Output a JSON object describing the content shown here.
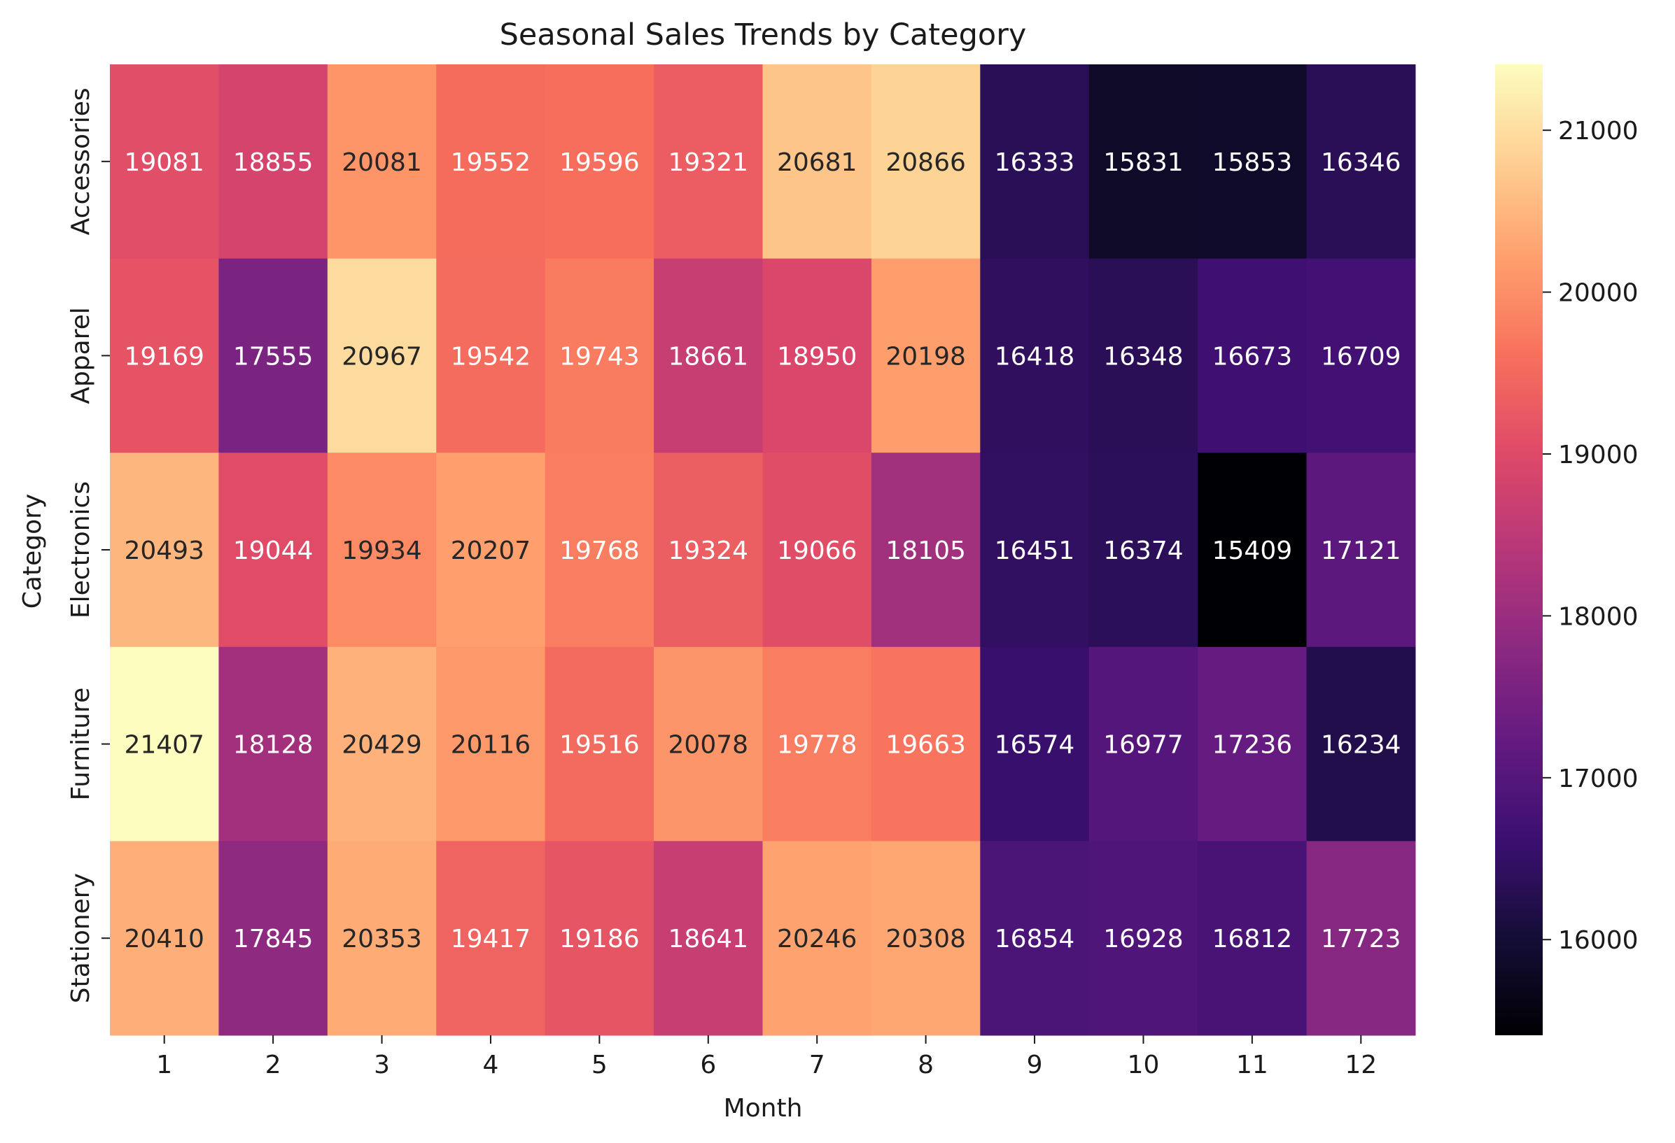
{
  "chart_data": {
    "type": "heatmap",
    "title": "Seasonal Sales Trends by Category",
    "xlabel": "Month",
    "ylabel": "Category",
    "x_categories": [
      "1",
      "2",
      "3",
      "4",
      "5",
      "6",
      "7",
      "8",
      "9",
      "10",
      "11",
      "12"
    ],
    "y_categories": [
      "Accessories",
      "Apparel",
      "Electronics",
      "Furniture",
      "Stationery"
    ],
    "values": [
      [
        19081,
        18855,
        20081,
        19552,
        19596,
        19321,
        20681,
        20866,
        16333,
        15831,
        15853,
        16346
      ],
      [
        19169,
        17555,
        20967,
        19542,
        19743,
        18661,
        18950,
        20198,
        16418,
        16348,
        16673,
        16709
      ],
      [
        20493,
        19044,
        19934,
        20207,
        19768,
        19324,
        19066,
        18105,
        16451,
        16374,
        15409,
        17121
      ],
      [
        21407,
        18128,
        20429,
        20116,
        19516,
        20078,
        19778,
        19663,
        16574,
        16977,
        17236,
        16234
      ],
      [
        20410,
        17845,
        20353,
        19417,
        19186,
        18641,
        20246,
        20308,
        16854,
        16928,
        16812,
        17723
      ]
    ],
    "colormap": "magma",
    "colorbar": {
      "min": 15409,
      "max": 21407,
      "ticks": [
        "16000",
        "17000",
        "18000",
        "19000",
        "20000",
        "21000"
      ]
    },
    "annotations": true
  }
}
